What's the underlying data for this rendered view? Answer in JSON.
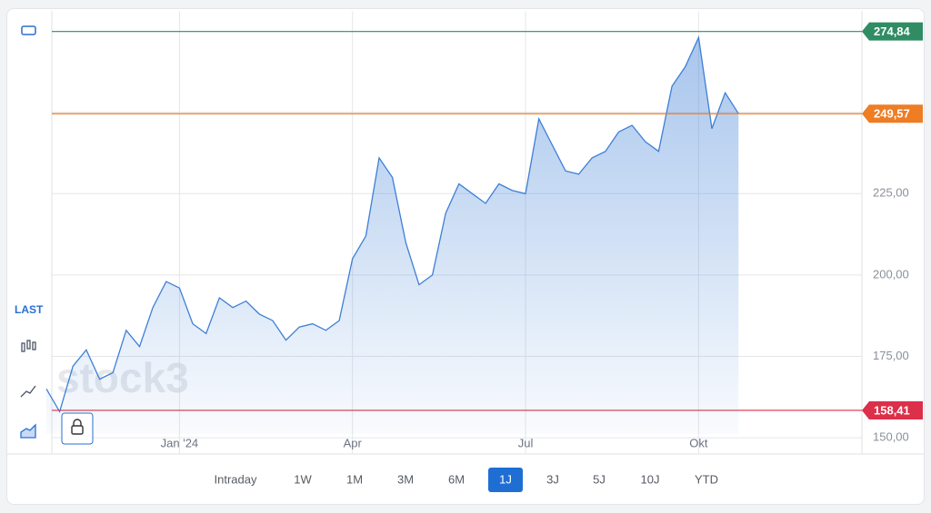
{
  "chart_data": {
    "type": "area",
    "watermark": "stock3",
    "side_label": "LAST",
    "categories": [
      null,
      null,
      null,
      null,
      null,
      null,
      null,
      null,
      null,
      null,
      "Jan '24",
      null,
      null,
      null,
      null,
      null,
      null,
      null,
      null,
      null,
      null,
      null,
      null,
      "Apr",
      null,
      null,
      null,
      null,
      null,
      null,
      null,
      null,
      null,
      null,
      null,
      null,
      "Jul",
      null,
      null,
      null,
      null,
      null,
      null,
      null,
      null,
      null,
      null,
      null,
      null,
      "Okt",
      null,
      null,
      null
    ],
    "values": [
      165,
      158,
      172,
      177,
      168,
      170,
      183,
      178,
      190,
      198,
      196,
      185,
      182,
      193,
      190,
      192,
      188,
      186,
      180,
      184,
      185,
      183,
      186,
      205,
      212,
      236,
      230,
      210,
      197,
      200,
      219,
      228,
      225,
      222,
      228,
      226,
      225,
      248,
      240,
      232,
      231,
      236,
      238,
      244,
      246,
      241,
      238,
      258,
      264,
      273,
      245,
      256,
      249.57
    ],
    "color": "#3d7fd6",
    "ylim": [
      145,
      281
    ],
    "yticks": [
      {
        "value": 150,
        "label": "150,00"
      },
      {
        "value": 175,
        "label": "175,00"
      },
      {
        "value": 200,
        "label": "200,00"
      },
      {
        "value": 225,
        "label": "225,00"
      },
      {
        "value": 250,
        "label": "250,00"
      }
    ],
    "grid": true,
    "levels": [
      {
        "value": 274.84,
        "label": "274,84",
        "color": "#2f8c63"
      },
      {
        "value": 249.57,
        "label": "249,57",
        "color": "#ee7d24"
      },
      {
        "value": 158.41,
        "label": "158,41",
        "color": "#dc2f4a"
      }
    ],
    "buttons": [
      {
        "label": "Intraday",
        "active": false
      },
      {
        "label": "1W",
        "active": false
      },
      {
        "label": "1M",
        "active": false
      },
      {
        "label": "3M",
        "active": false
      },
      {
        "label": "6M",
        "active": false
      },
      {
        "label": "1J",
        "active": true
      },
      {
        "label": "3J",
        "active": false
      },
      {
        "label": "5J",
        "active": false
      },
      {
        "label": "10J",
        "active": false
      },
      {
        "label": "YTD",
        "active": false
      }
    ]
  }
}
